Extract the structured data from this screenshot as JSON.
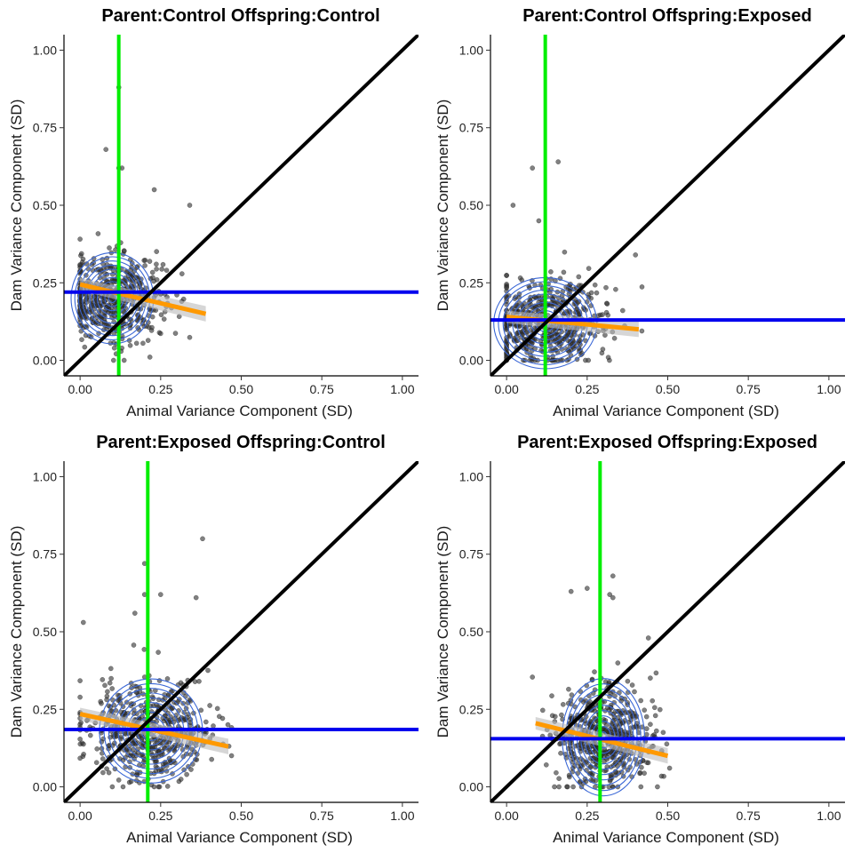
{
  "chart_data": [
    {
      "type": "scatter",
      "title": "Parent:Control Offspring:Control",
      "xlabel": "Animal Variance Component (SD)",
      "ylabel": "Dam Variance Component (SD)",
      "xlim": [
        -0.05,
        1.05
      ],
      "ylim": [
        -0.05,
        1.05
      ],
      "xticks": [
        "0.00",
        "0.25",
        "0.50",
        "0.75",
        "1.00"
      ],
      "yticks": [
        "0.00",
        "0.25",
        "0.50",
        "0.75",
        "1.00"
      ],
      "vline_x": 0.12,
      "hline_y": 0.22,
      "fit": {
        "x": [
          0.0,
          0.39
        ],
        "y": [
          0.245,
          0.15
        ]
      },
      "cloud": {
        "x_center": 0.1,
        "x_spread": 0.08,
        "x_range": [
          0.0,
          0.4
        ],
        "y_center": 0.2,
        "y_spread": 0.07,
        "y_range": [
          0.0,
          0.62
        ],
        "n": 480
      },
      "outliers": [
        {
          "x": 0.12,
          "y": 0.88
        },
        {
          "x": 0.08,
          "y": 0.68
        },
        {
          "x": 0.12,
          "y": 0.62
        },
        {
          "x": 0.13,
          "y": 0.62
        },
        {
          "x": 0.23,
          "y": 0.55
        },
        {
          "x": 0.34,
          "y": 0.5
        }
      ],
      "grid": false,
      "legend": "none",
      "colors": {
        "points": "#333333",
        "density": "#3a67d6",
        "fit": "#ff9900",
        "vline": "#00ee00",
        "hline": "#0000ee",
        "diagonal": "#000000"
      }
    },
    {
      "type": "scatter",
      "title": "Parent:Control Offspring:Exposed",
      "xlabel": "Animal Variance Component (SD)",
      "ylabel": "Dam Variance Component (SD)",
      "xlim": [
        -0.05,
        1.05
      ],
      "ylim": [
        -0.05,
        1.05
      ],
      "xticks": [
        "0.00",
        "0.25",
        "0.50",
        "0.75",
        "1.00"
      ],
      "yticks": [
        "0.00",
        "0.25",
        "0.50",
        "0.75",
        "1.00"
      ],
      "vline_x": 0.12,
      "hline_y": 0.13,
      "fit": {
        "x": [
          0.0,
          0.41
        ],
        "y": [
          0.14,
          0.1
        ]
      },
      "cloud": {
        "x_center": 0.12,
        "x_spread": 0.1,
        "x_range": [
          0.0,
          0.42
        ],
        "y_center": 0.12,
        "y_spread": 0.07,
        "y_range": [
          0.0,
          0.45
        ],
        "n": 520
      },
      "outliers": [
        {
          "x": 0.08,
          "y": 0.62
        },
        {
          "x": 0.16,
          "y": 0.64
        },
        {
          "x": 0.02,
          "y": 0.5
        },
        {
          "x": 0.1,
          "y": 0.45
        },
        {
          "x": 0.4,
          "y": 0.34
        }
      ],
      "grid": false,
      "legend": "none",
      "colors": {
        "points": "#333333",
        "density": "#3a67d6",
        "fit": "#ff9900",
        "vline": "#00ee00",
        "hline": "#0000ee",
        "diagonal": "#000000"
      }
    },
    {
      "type": "scatter",
      "title": "Parent:Exposed Offspring:Control",
      "xlabel": "Animal Variance Component (SD)",
      "ylabel": "Dam Variance Component (SD)",
      "xlim": [
        -0.05,
        1.05
      ],
      "ylim": [
        -0.05,
        1.05
      ],
      "xticks": [
        "0.00",
        "0.25",
        "0.50",
        "0.75",
        "1.00"
      ],
      "yticks": [
        "0.00",
        "0.25",
        "0.50",
        "0.75",
        "1.00"
      ],
      "vline_x": 0.21,
      "hline_y": 0.185,
      "fit": {
        "x": [
          0.0,
          0.46
        ],
        "y": [
          0.235,
          0.13
        ]
      },
      "cloud": {
        "x_center": 0.22,
        "x_spread": 0.1,
        "x_range": [
          0.0,
          0.47
        ],
        "y_center": 0.18,
        "y_spread": 0.08,
        "y_range": [
          0.0,
          0.55
        ],
        "n": 520
      },
      "outliers": [
        {
          "x": 0.38,
          "y": 0.8
        },
        {
          "x": 0.2,
          "y": 0.72
        },
        {
          "x": 0.2,
          "y": 0.62
        },
        {
          "x": 0.25,
          "y": 0.62
        },
        {
          "x": 0.17,
          "y": 0.56
        },
        {
          "x": 0.01,
          "y": 0.53
        },
        {
          "x": 0.36,
          "y": 0.61
        }
      ],
      "grid": false,
      "legend": "none",
      "colors": {
        "points": "#333333",
        "density": "#3a67d6",
        "fit": "#ff9900",
        "vline": "#00ee00",
        "hline": "#0000ee",
        "diagonal": "#000000"
      }
    },
    {
      "type": "scatter",
      "title": "Parent:Exposed Offspring:Exposed",
      "xlabel": "Animal Variance Component (SD)",
      "ylabel": "Dam Variance Component (SD)",
      "xlim": [
        -0.05,
        1.05
      ],
      "ylim": [
        -0.05,
        1.05
      ],
      "xticks": [
        "0.00",
        "0.25",
        "0.50",
        "0.75",
        "1.00"
      ],
      "yticks": [
        "0.00",
        "0.25",
        "0.50",
        "0.75",
        "1.00"
      ],
      "vline_x": 0.29,
      "hline_y": 0.155,
      "fit": {
        "x": [
          0.09,
          0.5
        ],
        "y": [
          0.205,
          0.1
        ]
      },
      "cloud": {
        "x_center": 0.3,
        "x_spread": 0.08,
        "x_range": [
          0.08,
          0.52
        ],
        "y_center": 0.16,
        "y_spread": 0.09,
        "y_range": [
          0.0,
          0.6
        ],
        "n": 520
      },
      "outliers": [
        {
          "x": 0.33,
          "y": 0.68
        },
        {
          "x": 0.2,
          "y": 0.63
        },
        {
          "x": 0.25,
          "y": 0.64
        },
        {
          "x": 0.32,
          "y": 0.62
        },
        {
          "x": 0.33,
          "y": 0.61
        },
        {
          "x": 0.44,
          "y": 0.48
        }
      ],
      "grid": false,
      "legend": "none",
      "colors": {
        "points": "#333333",
        "density": "#3a67d6",
        "fit": "#ff9900",
        "vline": "#00ee00",
        "hline": "#0000ee",
        "diagonal": "#000000"
      }
    }
  ]
}
